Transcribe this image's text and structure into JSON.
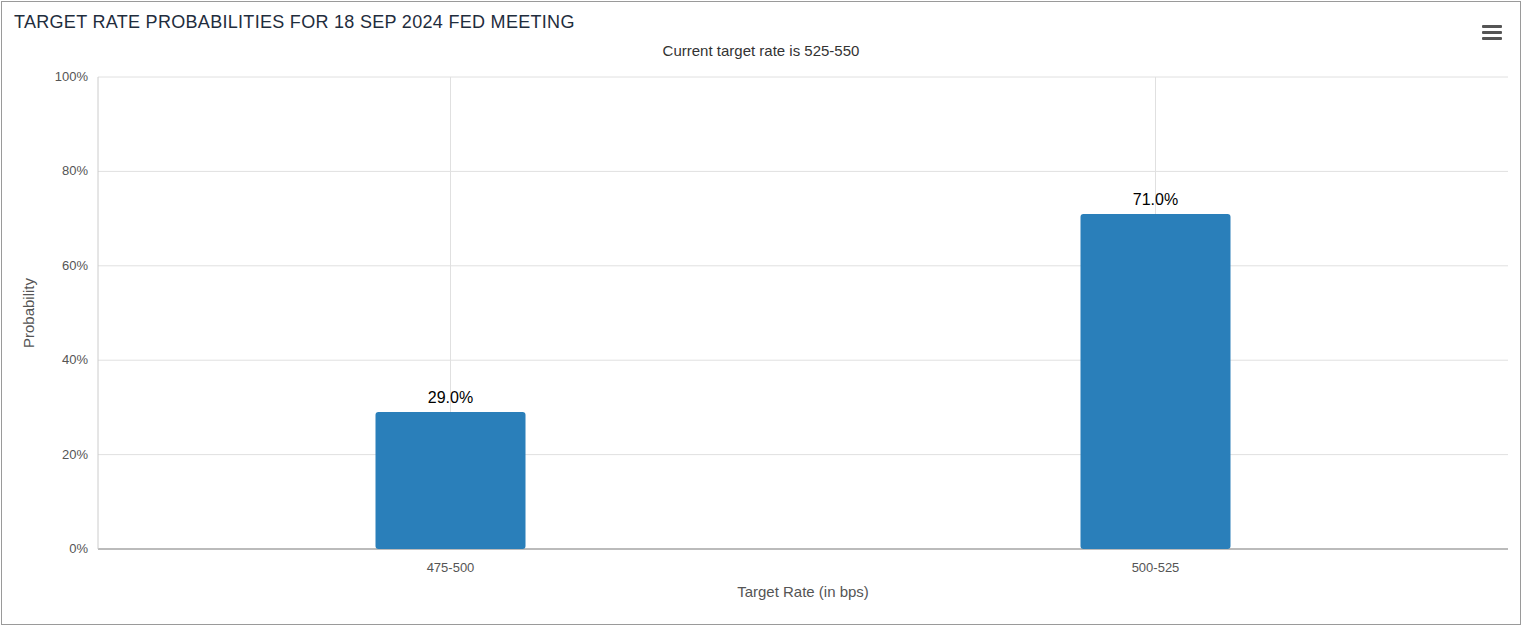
{
  "chart_data": {
    "type": "bar",
    "title": "TARGET RATE PROBABILITIES FOR 18 SEP 2024 FED MEETING",
    "subtitle": "Current target rate is 525-550",
    "x_label": "Target Rate (in bps)",
    "y_label": "Probability",
    "categories": [
      "475-500",
      "500-525"
    ],
    "values": [
      29.0,
      71.0
    ],
    "value_labels": [
      "29.0%",
      "71.0%"
    ],
    "color": "#2a7fba",
    "ylim": [
      0,
      100
    ],
    "yticks": [
      {
        "value": 0,
        "label": "0%"
      },
      {
        "value": 20,
        "label": "20%"
      },
      {
        "value": 40,
        "label": "40%"
      },
      {
        "value": 60,
        "label": "60%"
      },
      {
        "value": 80,
        "label": "80%"
      },
      {
        "value": 100,
        "label": "100%"
      }
    ],
    "grid": true,
    "data_labels": true
  }
}
